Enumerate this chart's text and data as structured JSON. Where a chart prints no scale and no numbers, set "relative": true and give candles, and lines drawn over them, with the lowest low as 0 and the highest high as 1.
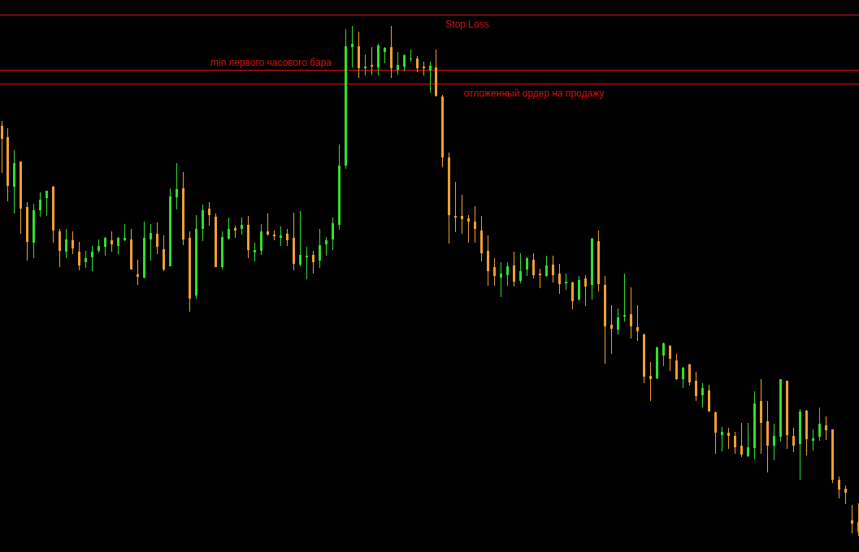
{
  "chart_data": {
    "type": "candlestick",
    "relative": true,
    "categories": [
      null,
      null,
      null,
      null,
      null,
      null,
      null,
      null,
      null,
      null,
      null,
      null,
      null,
      null,
      null,
      null,
      null,
      null,
      null,
      null,
      null,
      null,
      null,
      null,
      null,
      null,
      null,
      null,
      null,
      null,
      null,
      null,
      null,
      null,
      null,
      null,
      null,
      null,
      null,
      null,
      null,
      null,
      null,
      null,
      null,
      null,
      null,
      null,
      null,
      null,
      null,
      null,
      null,
      null,
      null,
      null,
      null,
      null,
      null,
      null,
      null,
      null,
      null,
      null,
      null,
      null,
      null,
      null,
      null,
      null,
      null,
      null,
      null,
      null,
      null,
      null,
      null,
      null,
      null,
      null,
      null,
      null,
      null,
      null,
      null,
      null,
      null,
      null,
      null,
      null,
      null,
      null,
      null,
      null,
      null,
      null,
      null,
      null,
      null,
      null,
      null,
      null,
      null,
      null,
      null,
      null,
      null,
      null,
      null,
      null,
      null,
      null,
      null,
      null,
      null,
      null,
      null,
      null,
      null,
      null,
      null,
      null,
      null,
      null,
      null,
      null,
      null,
      null,
      null,
      null,
      null,
      null,
      null
    ],
    "ohlc": [
      [
        0.804,
        0.814,
        0.712,
        0.779
      ],
      [
        0.782,
        0.799,
        0.656,
        0.686
      ],
      [
        0.685,
        0.756,
        0.632,
        0.731
      ],
      [
        0.734,
        0.734,
        0.592,
        0.642
      ],
      [
        0.645,
        0.654,
        0.54,
        0.576
      ],
      [
        0.575,
        0.651,
        0.545,
        0.639
      ],
      [
        0.639,
        0.674,
        0.626,
        0.659
      ],
      [
        0.662,
        0.677,
        0.627,
        0.677
      ],
      [
        0.685,
        0.686,
        0.575,
        0.599
      ],
      [
        0.597,
        0.602,
        0.527,
        0.559
      ],
      [
        0.557,
        0.602,
        0.545,
        0.581
      ],
      [
        0.58,
        0.597,
        0.553,
        0.564
      ],
      [
        0.557,
        0.576,
        0.521,
        0.53
      ],
      [
        0.537,
        0.559,
        0.525,
        0.545
      ],
      [
        0.546,
        0.568,
        0.519,
        0.557
      ],
      [
        0.559,
        0.581,
        0.556,
        0.568
      ],
      [
        0.567,
        0.586,
        0.549,
        0.584
      ],
      [
        0.58,
        0.597,
        0.557,
        0.572
      ],
      [
        0.568,
        0.586,
        0.553,
        0.584
      ],
      [
        0.58,
        0.611,
        0.578,
        0.584
      ],
      [
        0.581,
        0.602,
        0.522,
        0.522
      ],
      [
        0.513,
        0.541,
        0.492,
        0.508
      ],
      [
        0.506,
        0.616,
        0.505,
        0.584
      ],
      [
        0.581,
        0.611,
        0.54,
        0.594
      ],
      [
        0.592,
        0.615,
        0.553,
        0.567
      ],
      [
        0.562,
        0.589,
        0.519,
        0.522
      ],
      [
        0.529,
        0.682,
        0.529,
        0.666
      ],
      [
        0.664,
        0.731,
        0.64,
        0.68
      ],
      [
        0.682,
        0.713,
        0.57,
        0.581
      ],
      [
        0.584,
        0.597,
        0.439,
        0.465
      ],
      [
        0.471,
        0.629,
        0.465,
        0.602
      ],
      [
        0.602,
        0.65,
        0.578,
        0.639
      ],
      [
        0.642,
        0.654,
        0.608,
        0.629
      ],
      [
        0.626,
        0.632,
        0.527,
        0.527
      ],
      [
        0.527,
        0.597,
        0.522,
        0.586
      ],
      [
        0.583,
        0.624,
        0.581,
        0.602
      ],
      [
        0.604,
        0.608,
        0.584,
        0.599
      ],
      [
        0.602,
        0.624,
        0.591,
        0.61
      ],
      [
        0.61,
        0.627,
        0.545,
        0.561
      ],
      [
        0.556,
        0.575,
        0.538,
        0.561
      ],
      [
        0.559,
        0.611,
        0.551,
        0.597
      ],
      [
        0.597,
        0.632,
        0.589,
        0.591
      ],
      [
        0.591,
        0.599,
        0.58,
        0.588
      ],
      [
        0.584,
        0.607,
        0.568,
        0.589
      ],
      [
        0.592,
        0.602,
        0.568,
        0.58
      ],
      [
        0.584,
        0.634,
        0.521,
        0.533
      ],
      [
        0.532,
        0.637,
        0.529,
        0.551
      ],
      [
        0.546,
        0.567,
        0.503,
        0.549
      ],
      [
        0.551,
        0.559,
        0.514,
        0.537
      ],
      [
        0.54,
        0.602,
        0.525,
        0.57
      ],
      [
        0.572,
        0.586,
        0.549,
        0.58
      ],
      [
        0.581,
        0.624,
        0.561,
        0.613
      ],
      [
        0.61,
        0.768,
        0.6,
        0.726
      ],
      [
        0.726,
        0.994,
        0.72,
        0.96
      ],
      [
        0.959,
        1.0,
        0.919,
        0.965
      ],
      [
        0.96,
        0.989,
        0.898,
        0.917
      ],
      [
        0.917,
        0.944,
        0.903,
        0.92
      ],
      [
        0.924,
        0.959,
        0.904,
        0.92
      ],
      [
        0.919,
        0.965,
        0.903,
        0.962
      ],
      [
        0.949,
        0.959,
        0.927,
        0.957
      ],
      [
        0.959,
        1.0,
        0.898,
        0.917
      ],
      [
        0.914,
        0.949,
        0.904,
        0.924
      ],
      [
        0.92,
        0.944,
        0.911,
        0.943
      ],
      [
        0.935,
        0.954,
        0.93,
        0.936
      ],
      [
        0.936,
        0.941,
        0.909,
        0.917
      ],
      [
        0.92,
        0.93,
        0.903,
        0.917
      ],
      [
        0.912,
        0.93,
        0.869,
        0.922
      ],
      [
        0.919,
        0.954,
        0.861,
        0.863
      ],
      [
        0.861,
        0.865,
        0.723,
        0.742
      ],
      [
        0.742,
        0.752,
        0.573,
        0.629
      ],
      [
        0.627,
        0.694,
        0.596,
        0.624
      ],
      [
        0.627,
        0.669,
        0.592,
        0.621
      ],
      [
        0.623,
        0.629,
        0.575,
        0.616
      ],
      [
        0.616,
        0.646,
        0.575,
        0.602
      ],
      [
        0.599,
        0.627,
        0.538,
        0.554
      ],
      [
        0.559,
        0.589,
        0.49,
        0.519
      ],
      [
        0.527,
        0.545,
        0.49,
        0.51
      ],
      [
        0.506,
        0.537,
        0.468,
        0.514
      ],
      [
        0.511,
        0.537,
        0.49,
        0.529
      ],
      [
        0.53,
        0.557,
        0.489,
        0.498
      ],
      [
        0.5,
        0.554,
        0.495,
        0.519
      ],
      [
        0.522,
        0.546,
        0.51,
        0.545
      ],
      [
        0.541,
        0.554,
        0.505,
        0.511
      ],
      [
        0.514,
        0.524,
        0.486,
        0.511
      ],
      [
        0.51,
        0.549,
        0.508,
        0.53
      ],
      [
        0.532,
        0.549,
        0.497,
        0.511
      ],
      [
        0.514,
        0.533,
        0.475,
        0.494
      ],
      [
        0.495,
        0.514,
        0.482,
        0.498
      ],
      [
        0.497,
        0.498,
        0.444,
        0.46
      ],
      [
        0.463,
        0.51,
        0.462,
        0.502
      ],
      [
        0.505,
        0.511,
        0.451,
        0.489
      ],
      [
        0.492,
        0.584,
        0.463,
        0.583
      ],
      [
        0.578,
        0.599,
        0.479,
        0.494
      ],
      [
        0.492,
        0.51,
        0.338,
        0.411
      ],
      [
        0.414,
        0.452,
        0.357,
        0.406
      ],
      [
        0.404,
        0.446,
        0.395,
        0.428
      ],
      [
        0.43,
        0.514,
        0.42,
        0.433
      ],
      [
        0.435,
        0.487,
        0.387,
        0.411
      ],
      [
        0.409,
        0.452,
        0.382,
        0.401
      ],
      [
        0.395,
        0.396,
        0.299,
        0.312
      ],
      [
        0.314,
        0.341,
        0.264,
        0.307
      ],
      [
        0.309,
        0.371,
        0.307,
        0.369
      ],
      [
        0.354,
        0.379,
        0.333,
        0.377
      ],
      [
        0.373,
        0.374,
        0.323,
        0.347
      ],
      [
        0.344,
        0.357,
        0.306,
        0.307
      ],
      [
        0.307,
        0.331,
        0.29,
        0.33
      ],
      [
        0.336,
        0.338,
        0.295,
        0.301
      ],
      [
        0.304,
        0.322,
        0.264,
        0.274
      ],
      [
        0.275,
        0.299,
        0.252,
        0.29
      ],
      [
        0.285,
        0.296,
        0.244,
        0.244
      ],
      [
        0.242,
        0.244,
        0.161,
        0.202
      ],
      [
        0.197,
        0.213,
        0.166,
        0.204
      ],
      [
        0.202,
        0.212,
        0.17,
        0.196
      ],
      [
        0.196,
        0.204,
        0.161,
        0.174
      ],
      [
        0.177,
        0.221,
        0.154,
        0.159
      ],
      [
        0.156,
        0.221,
        0.154,
        0.174
      ],
      [
        0.172,
        0.283,
        0.15,
        0.26
      ],
      [
        0.264,
        0.307,
        0.161,
        0.221
      ],
      [
        0.225,
        0.264,
        0.124,
        0.177
      ],
      [
        0.177,
        0.22,
        0.148,
        0.196
      ],
      [
        0.194,
        0.307,
        0.185,
        0.307
      ],
      [
        0.304,
        0.304,
        0.17,
        0.197
      ],
      [
        0.196,
        0.212,
        0.164,
        0.177
      ],
      [
        0.18,
        0.248,
        0.11,
        0.244
      ],
      [
        0.245,
        0.247,
        0.158,
        0.189
      ],
      [
        0.186,
        0.209,
        0.167,
        0.191
      ],
      [
        0.194,
        0.252,
        0.186,
        0.22
      ],
      [
        0.217,
        0.234,
        0.188,
        0.207
      ],
      [
        0.209,
        0.209,
        0.104,
        0.11
      ],
      [
        0.11,
        0.116,
        0.073,
        0.091
      ],
      [
        0.092,
        0.099,
        0.062,
        0.084
      ],
      [
        0.03,
        0.061,
        0.005,
        0.024
      ],
      [
        0.027,
        0.064,
        0.0,
        0.008
      ]
    ],
    "colors": [
      "#f0a030",
      "#f0a030",
      "#33dd33",
      "#f0a030",
      "#f0a030",
      "#33dd33",
      "#33dd33",
      "#33dd33",
      "#f0a030",
      "#f0a030",
      "#33dd33",
      "#f0a030",
      "#f0a030",
      "#33dd33",
      "#33dd33",
      "#33dd33",
      "#33dd33",
      "#f0a030",
      "#33dd33",
      "#33dd33",
      "#f0a030",
      "#f0a030",
      "#33dd33",
      "#33dd33",
      "#f0a030",
      "#f0a030",
      "#33dd33",
      "#33dd33",
      "#f0a030",
      "#f0a030",
      "#33dd33",
      "#33dd33",
      "#f0a030",
      "#f0a030",
      "#33dd33",
      "#33dd33",
      "#f0a030",
      "#33dd33",
      "#f0a030",
      "#33dd33",
      "#33dd33",
      "#f0a030",
      "#f0a030",
      "#33dd33",
      "#f0a030",
      "#f0a030",
      "#33dd33",
      "#33dd33",
      "#f0a030",
      "#33dd33",
      "#33dd33",
      "#33dd33",
      "#33dd33",
      "#33dd33",
      "#33dd33",
      "#f0a030",
      "#33dd33",
      "#f0a030",
      "#33dd33",
      "#33dd33",
      "#f0a030",
      "#33dd33",
      "#33dd33",
      "#33dd33",
      "#f0a030",
      "#f0a030",
      "#33dd33",
      "#f0a030",
      "#f0a030",
      "#f0a030",
      "#f0a030",
      "#f0a030",
      "#f0a030",
      "#f0a030",
      "#f0a030",
      "#f0a030",
      "#f0a030",
      "#33dd33",
      "#33dd33",
      "#f0a030",
      "#33dd33",
      "#33dd33",
      "#f0a030",
      "#f0a030",
      "#33dd33",
      "#f0a030",
      "#f0a030",
      "#33dd33",
      "#f0a030",
      "#33dd33",
      "#f0a030",
      "#33dd33",
      "#f0a030",
      "#f0a030",
      "#f0a030",
      "#33dd33",
      "#33dd33",
      "#f0a030",
      "#f0a030",
      "#f0a030",
      "#f0a030",
      "#33dd33",
      "#33dd33",
      "#f0a030",
      "#f0a030",
      "#33dd33",
      "#f0a030",
      "#f0a030",
      "#33dd33",
      "#f0a030",
      "#f0a030",
      "#33dd33",
      "#f0a030",
      "#f0a030",
      "#f0a030",
      "#33dd33",
      "#33dd33",
      "#f0a030",
      "#f0a030",
      "#33dd33",
      "#33dd33",
      "#f0a030",
      "#f0a030",
      "#33dd33",
      "#f0a030",
      "#33dd33",
      "#33dd33",
      "#f0a030",
      "#f0a030",
      "#f0a030",
      "#f0a030",
      "#f0a030",
      "#f0a030"
    ],
    "ref_lines": [
      {
        "axis": "y",
        "value": 1.022,
        "label": "Stop Loss",
        "color": "#e01010"
      },
      {
        "axis": "y",
        "value": 0.914,
        "label": "min первого часового бара",
        "color": "#e01010"
      },
      {
        "axis": "y",
        "value": 0.887,
        "label": "отложенный ордер на продажу",
        "color": "#e01010"
      }
    ]
  }
}
